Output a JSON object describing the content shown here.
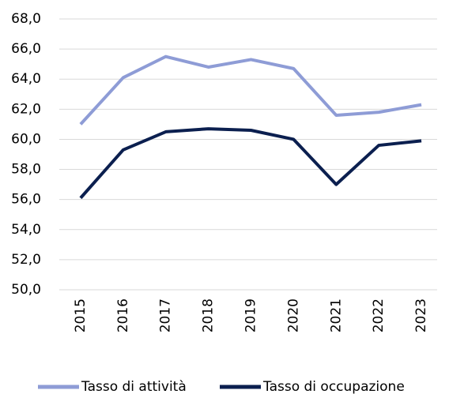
{
  "chart_data": {
    "type": "line",
    "categories": [
      "2015",
      "2016",
      "2017",
      "2018",
      "2019",
      "2020",
      "2021",
      "2022",
      "2023"
    ],
    "series": [
      {
        "name": "Tasso di attività",
        "color": "#8e9cd6",
        "values": [
          61.0,
          64.1,
          65.5,
          64.8,
          65.3,
          64.7,
          61.6,
          61.8,
          62.3
        ]
      },
      {
        "name": "Tasso di occupazione",
        "color": "#0b1f4f",
        "values": [
          56.1,
          59.3,
          60.5,
          60.7,
          60.6,
          60.0,
          57.0,
          59.6,
          59.9
        ]
      }
    ],
    "ylim": [
      50,
      68
    ],
    "yticks": [
      {
        "value": 50,
        "label": "50,0"
      },
      {
        "value": 52,
        "label": "52,0"
      },
      {
        "value": 54,
        "label": "54,0"
      },
      {
        "value": 56,
        "label": "56,0"
      },
      {
        "value": 58,
        "label": "58,0"
      },
      {
        "value": 60,
        "label": "60,0"
      },
      {
        "value": 62,
        "label": "62,0"
      },
      {
        "value": 64,
        "label": "64,0"
      },
      {
        "value": 66,
        "label": "66,0"
      },
      {
        "value": 68,
        "label": "68,0"
      }
    ],
    "grid": true
  }
}
